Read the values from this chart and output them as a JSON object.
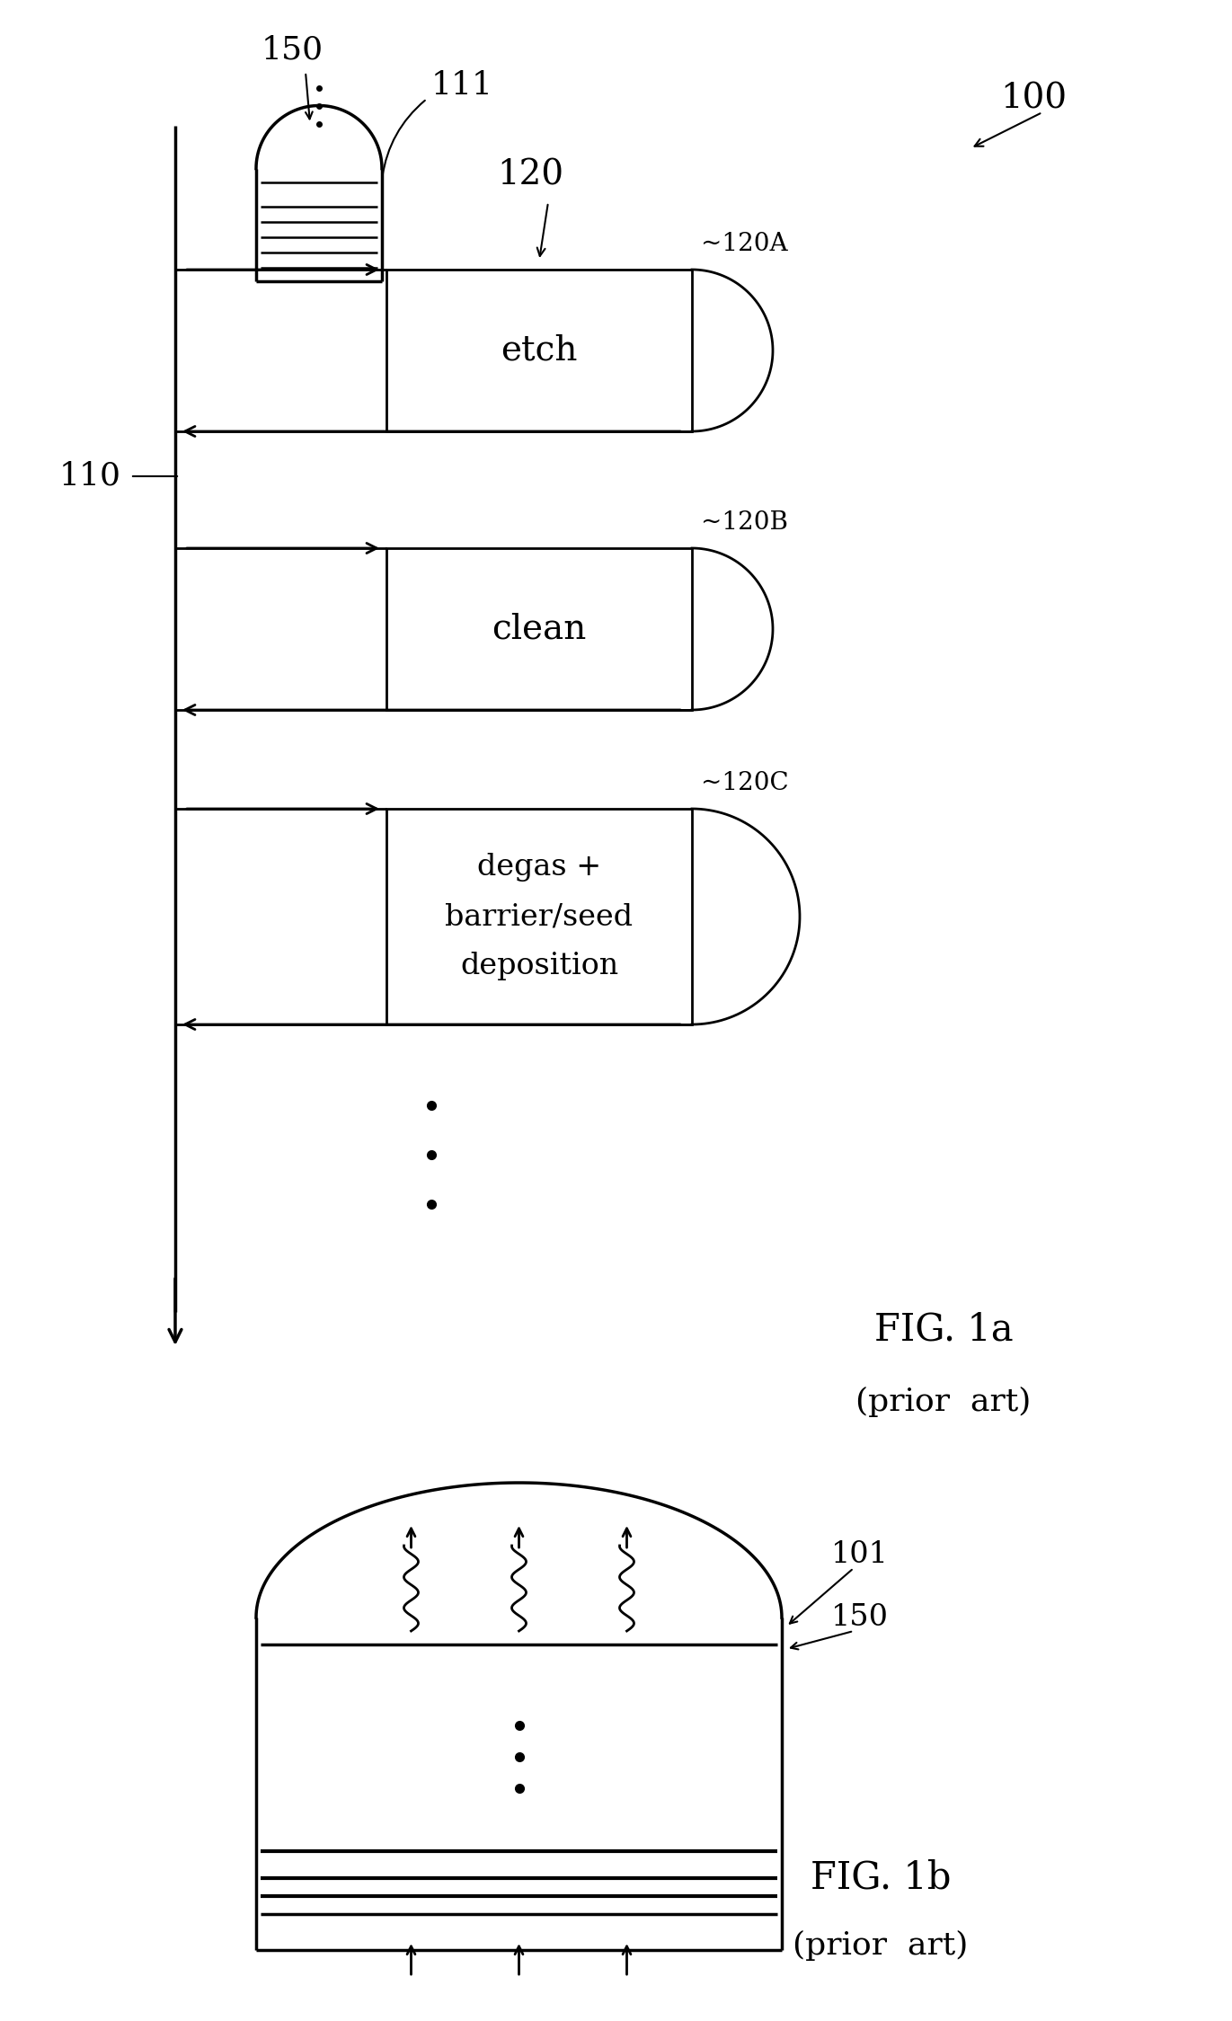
{
  "bg_color": "#ffffff",
  "fig_label": "100",
  "fig1a_label": "FIG. 1a",
  "fig1a_sub": "(prior  art)",
  "fig1b_label": "FIG. 1b",
  "fig1b_sub": "(prior  art)",
  "line110_label": "110",
  "box_etch_label": "etch",
  "box_etch_ref": "~120A",
  "box_clean_label": "clean",
  "box_clean_ref": "~120B",
  "box_degas_line1": "degas +",
  "box_degas_line2": "barrier/seed",
  "box_degas_line3": "deposition",
  "box_degas_ref": "~120C",
  "label_120": "120",
  "label_150_top": "150",
  "label_111": "111",
  "label_150_bot": "150",
  "label_101": "101"
}
